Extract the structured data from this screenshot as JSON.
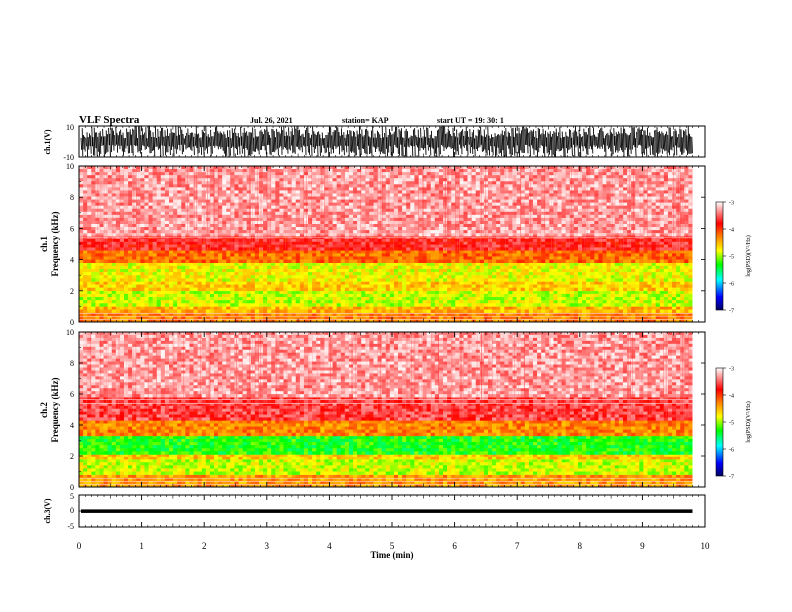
{
  "header": {
    "title": "VLF Spectra",
    "date": "Jul. 26, 2021",
    "station": "station= KAP",
    "start": "start UT =  19: 30: 1"
  },
  "chart_data": [
    {
      "type": "line",
      "name": "ch1-waveform",
      "ylabel": "ch.1(V)",
      "ylim": [
        -10,
        10
      ],
      "yticks": [
        "10",
        "-10"
      ],
      "xlim": [
        0,
        10
      ],
      "note_values": "dense saturated waveform spanning -10 to 10 V over 0-9.8 min"
    },
    {
      "type": "heatmap",
      "name": "ch1-spectrogram",
      "ylabel": "ch.1 Frequency (kHz)",
      "ylim": [
        0,
        10
      ],
      "yticks": [
        "0",
        "2",
        "4",
        "6",
        "8",
        "10"
      ],
      "xlim": [
        0,
        10
      ],
      "data_extent_min": 9.8,
      "bands": [
        {
          "f0": 0.0,
          "f1": 0.6,
          "level": -4.3
        },
        {
          "f0": 0.6,
          "f1": 1.0,
          "level": -4.5
        },
        {
          "f0": 1.0,
          "f1": 2.0,
          "level": -4.9
        },
        {
          "f0": 2.0,
          "f1": 2.6,
          "level": -4.6
        },
        {
          "f0": 2.6,
          "f1": 3.8,
          "level": -4.8
        },
        {
          "f0": 3.8,
          "f1": 4.6,
          "level": -4.2
        },
        {
          "f0": 4.6,
          "f1": 5.5,
          "level": -3.7
        },
        {
          "f0": 5.5,
          "f1": 10.0,
          "level": -3.3
        }
      ]
    },
    {
      "type": "heatmap",
      "name": "ch2-spectrogram",
      "ylabel": "ch.2 Frequency (kHz)",
      "ylim": [
        0,
        10
      ],
      "yticks": [
        "0",
        "2",
        "4",
        "6",
        "8",
        "10"
      ],
      "xlim": [
        0,
        10
      ],
      "data_extent_min": 9.8,
      "bands": [
        {
          "f0": 0.0,
          "f1": 0.8,
          "level": -4.4
        },
        {
          "f0": 0.8,
          "f1": 1.8,
          "level": -4.9
        },
        {
          "f0": 1.8,
          "f1": 2.1,
          "level": -4.6
        },
        {
          "f0": 2.1,
          "f1": 3.3,
          "level": -5.3
        },
        {
          "f0": 3.3,
          "f1": 4.3,
          "level": -4.3
        },
        {
          "f0": 4.3,
          "f1": 5.8,
          "level": -3.6
        },
        {
          "f0": 5.8,
          "f1": 10.0,
          "level": -3.3
        }
      ]
    },
    {
      "type": "line",
      "name": "ch3-waveform",
      "ylabel": "ch.3(V)",
      "ylim": [
        -5,
        5
      ],
      "yticks": [
        "5",
        "0",
        "-5"
      ],
      "xlim": [
        0,
        10
      ],
      "band_low": -0.6,
      "band_high": 0.5
    }
  ],
  "colorbar": {
    "label": "log(PSD)(V²/Hz)",
    "range": [
      -7,
      -3
    ],
    "ticks": [
      "-3",
      "-4",
      "-5",
      "-6",
      "-7"
    ],
    "colors": [
      "#000080",
      "#0000ff",
      "#00ffff",
      "#00ff00",
      "#ffff00",
      "#ff8000",
      "#ff0000",
      "#ffffff"
    ]
  },
  "xaxis": {
    "label": "Time (min)",
    "range": [
      0,
      10
    ],
    "ticks": [
      "0",
      "1",
      "2",
      "3",
      "4",
      "5",
      "6",
      "7",
      "8",
      "9",
      "10"
    ]
  }
}
